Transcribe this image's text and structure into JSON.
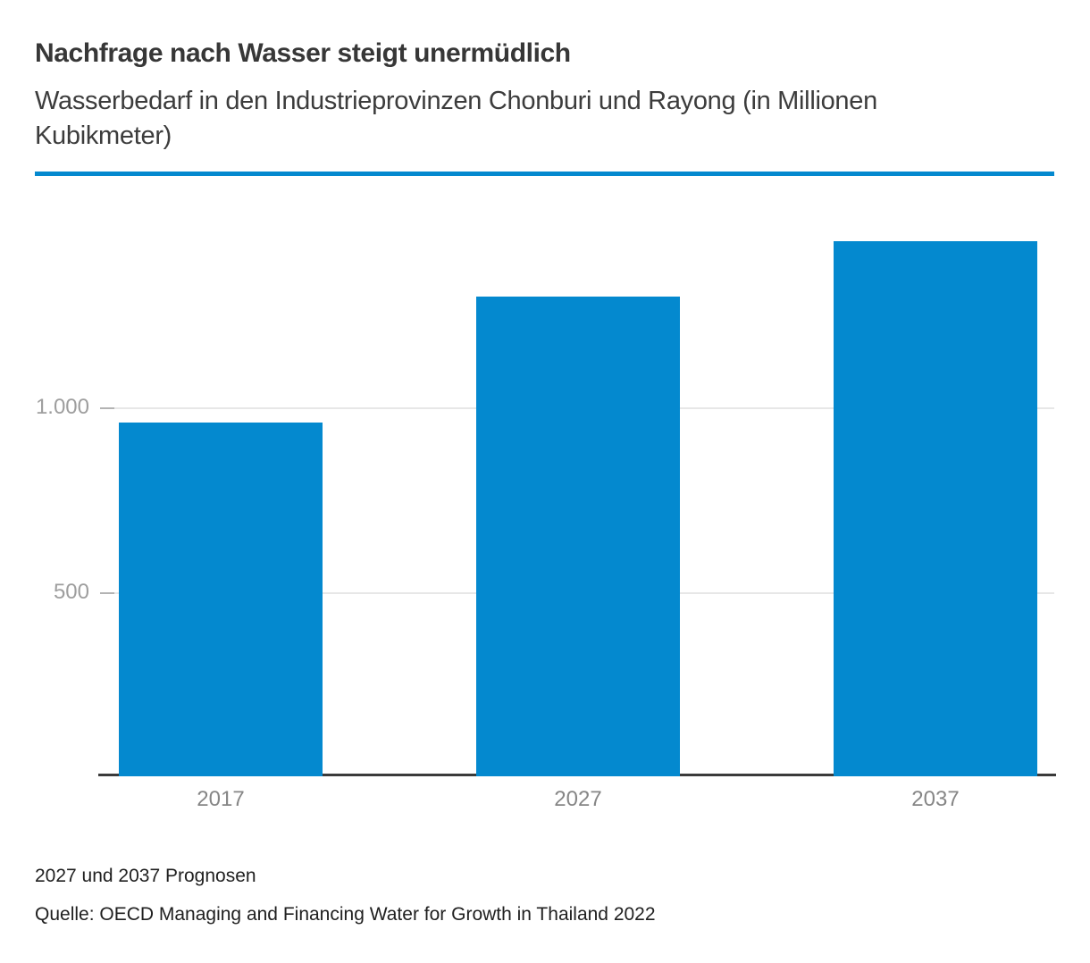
{
  "header": {
    "title": "Nachfrage nach Wasser steigt unermüdlich",
    "subtitle": "Wasserbedarf in den Industrieprovinzen Chonburi und Rayong (in Millionen Kubikmeter)"
  },
  "chart_data": {
    "type": "bar",
    "categories": [
      "2017",
      "2027",
      "2037"
    ],
    "values": [
      960,
      1300,
      1450
    ],
    "title": "Nachfrage nach Wasser steigt unermüdlich",
    "subtitle": "Wasserbedarf in den Industrieprovinzen Chonburi und Rayong (in Millionen Kubikmeter)",
    "xlabel": "",
    "ylabel": "",
    "ylim": [
      0,
      1500
    ],
    "yticks": [
      {
        "value": 500,
        "label": "500"
      },
      {
        "value": 1000,
        "label": "1.000"
      }
    ],
    "grid": true,
    "legend": "none",
    "bar_color": "#0489cf"
  },
  "footer": {
    "note": "2027 und 2037 Prognosen",
    "source": "Quelle: OECD Managing and Financing Water for Growth in Thailand 2022"
  },
  "colors": {
    "accent_blue": "#0489cf",
    "axis_line": "#3a3a3a",
    "gridline": "#e7e7e7",
    "tick_label": "#9e9e9e",
    "x_label": "#868686",
    "title_text": "#373737",
    "footer_text": "#202020"
  }
}
